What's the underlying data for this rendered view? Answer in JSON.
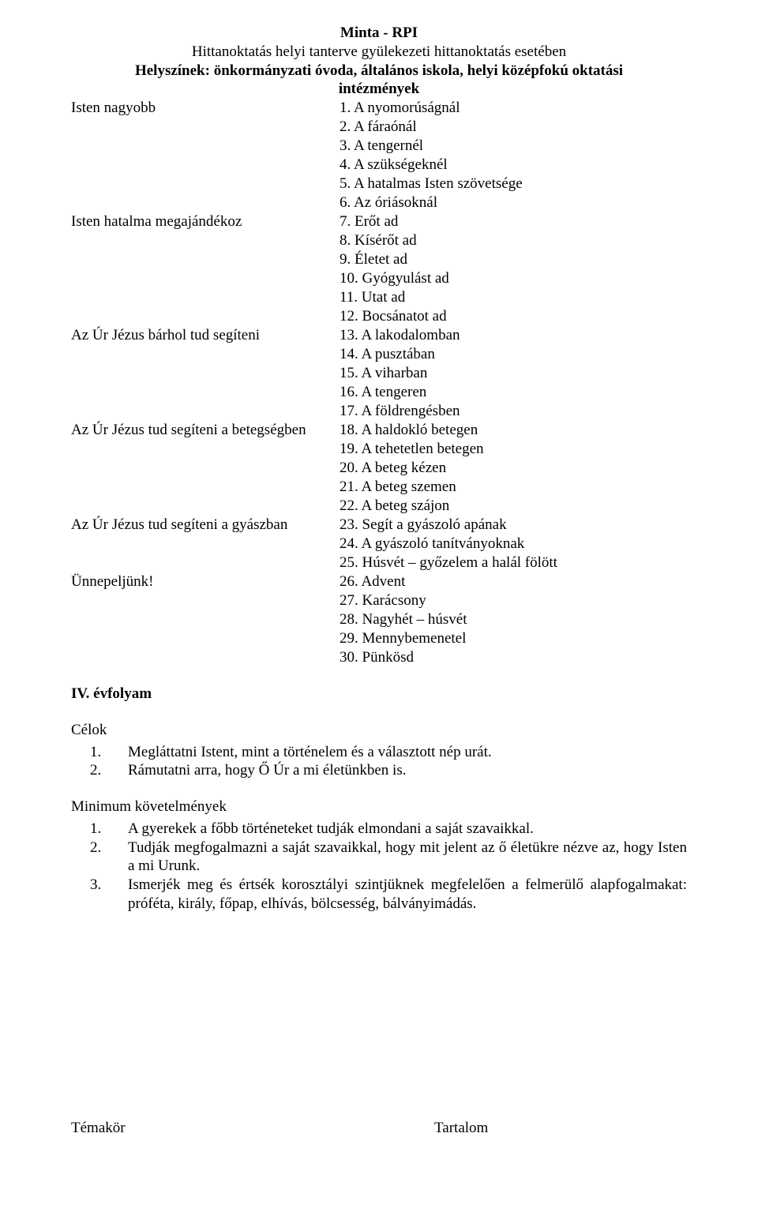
{
  "header": {
    "title": "Minta - RPI",
    "subtitle": "Hittanoktatás helyi tanterve gyülekezeti hittanoktatás esetében",
    "locations_line1": "Helyszínek: önkormányzati óvoda, általános iskola, helyi középfokú oktatási",
    "locations_line2": "intézmények"
  },
  "topics": [
    {
      "label": "Isten nagyobb",
      "items": [
        "1. A nyomorúságnál",
        "2. A fáraónál",
        "3. A tengernél",
        "4. A szükségeknél",
        "5. A hatalmas Isten szövetsége",
        "6. Az óriásoknál"
      ]
    },
    {
      "label": "Isten hatalma megajándékoz",
      "items": [
        "7. Erőt ad",
        "8. Kísérőt ad",
        "9. Életet ad",
        "10. Gyógyulást ad",
        "11. Utat ad",
        "12. Bocsánatot ad"
      ]
    },
    {
      "label": "Az Úr Jézus bárhol tud segíteni",
      "items": [
        "13. A lakodalomban",
        "14. A pusztában",
        "15. A viharban",
        "16. A tengeren",
        "17. A földrengésben"
      ]
    },
    {
      "label": "Az Úr Jézus tud segíteni a betegségben",
      "items": [
        "18. A haldokló betegen",
        "19. A tehetetlen betegen",
        "20. A beteg kézen",
        "21. A beteg szemen",
        "22. A beteg szájon"
      ]
    },
    {
      "label": "Az Úr Jézus tud segíteni a gyászban",
      "items": [
        "23. Segít a gyászoló apának",
        "24. A gyászoló tanítványoknak",
        "25. Húsvét – győzelem a halál fölött"
      ]
    },
    {
      "label": "Ünnepeljünk!",
      "items": [
        "26. Advent",
        "27. Karácsony",
        "28. Nagyhét – húsvét",
        "29. Mennybemenetel",
        "30. Pünkösd"
      ]
    }
  ],
  "grade": "IV. évfolyam",
  "goals": {
    "heading": "Célok",
    "items": [
      {
        "num": "1.",
        "text": "Megláttatni Istent, mint a történelem és a választott nép urát."
      },
      {
        "num": "2.",
        "text": "Rámutatni arra, hogy Ő Úr a mi életünkben is."
      }
    ]
  },
  "minreq": {
    "heading": "Minimum követelmények",
    "items": [
      {
        "num": "1.",
        "text": "A gyerekek a főbb történeteket tudják elmondani a saját szavaikkal."
      },
      {
        "num": "2.",
        "text": "Tudják megfogalmazni a saját szavaikkal, hogy mit jelent az ő életükre nézve az, hogy Isten a mi Urunk."
      },
      {
        "num": "3.",
        "text": "Ismerjék meg és értsék korosztályi szintjüknek megfelelően a felmerülő alapfogalmakat: próféta, király, főpap, elhívás, bölcsesség, bálványimádás."
      }
    ]
  },
  "footer": {
    "left": "Témakör",
    "right": "Tartalom"
  }
}
